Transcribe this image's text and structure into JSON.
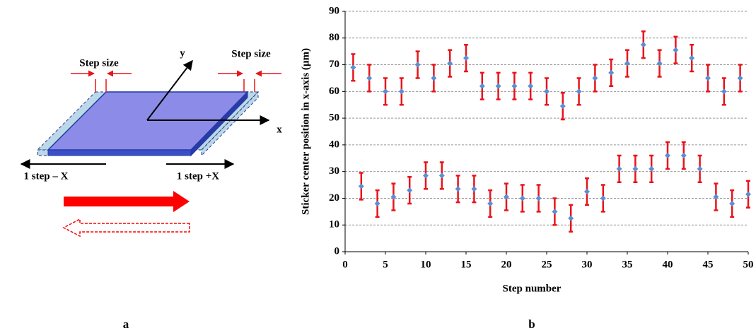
{
  "diagram": {
    "step_size_left": "Step size",
    "step_size_right": "Step size",
    "axis_y": "y",
    "axis_x": "x",
    "step_minus": "1 step – X",
    "step_plus": "1 step +X"
  },
  "panel_labels": {
    "a": "a",
    "b": "b"
  },
  "chart_data": {
    "type": "scatter",
    "xlabel": "Step number",
    "ylabel": "Sticker center position in x-axis (µm)",
    "xlim": [
      0,
      50
    ],
    "xticks": [
      0,
      5,
      10,
      15,
      20,
      25,
      30,
      35,
      40,
      45,
      50
    ],
    "ylim": [
      0,
      90
    ],
    "yticks": [
      0,
      10,
      20,
      30,
      40,
      50,
      60,
      70,
      80,
      90
    ],
    "grid": true,
    "series": [
      {
        "color": "#5b8fd0",
        "error_color": "#e8141b",
        "x": [
          1,
          2,
          3,
          4,
          5,
          6,
          7,
          8,
          9,
          10,
          11,
          12,
          13,
          14,
          15,
          16,
          17,
          18,
          19,
          20,
          21,
          22,
          23,
          24,
          25,
          26,
          27,
          28,
          29,
          30,
          31,
          32,
          33,
          34,
          35,
          36,
          37,
          38,
          39,
          40,
          41,
          42,
          43,
          44,
          45,
          46,
          47,
          48,
          49,
          50
        ],
        "values": [
          69,
          24.5,
          65,
          18,
          60,
          20.5,
          60,
          23,
          70,
          28.5,
          65,
          28.5,
          70.5,
          23.5,
          72.5,
          23.5,
          62,
          18,
          62,
          20.5,
          62,
          20,
          62,
          20,
          60,
          15,
          54.5,
          12.5,
          60,
          22.5,
          65,
          20,
          67,
          31,
          70.5,
          31,
          77.5,
          31,
          70.5,
          36,
          75.5,
          36,
          72.5,
          31,
          65,
          20.5,
          60,
          18,
          65,
          21.5
        ],
        "errors": [
          5,
          5,
          5,
          5,
          5,
          5,
          5,
          5,
          5,
          5,
          5,
          5,
          5,
          5,
          5,
          5,
          5,
          5,
          5,
          5,
          5,
          5,
          5,
          5,
          5,
          5,
          5,
          5,
          5,
          5,
          5,
          5,
          5,
          5,
          5,
          5,
          5,
          5,
          5,
          5,
          5,
          5,
          5,
          5,
          5,
          5,
          5,
          5,
          5,
          5
        ]
      }
    ]
  }
}
